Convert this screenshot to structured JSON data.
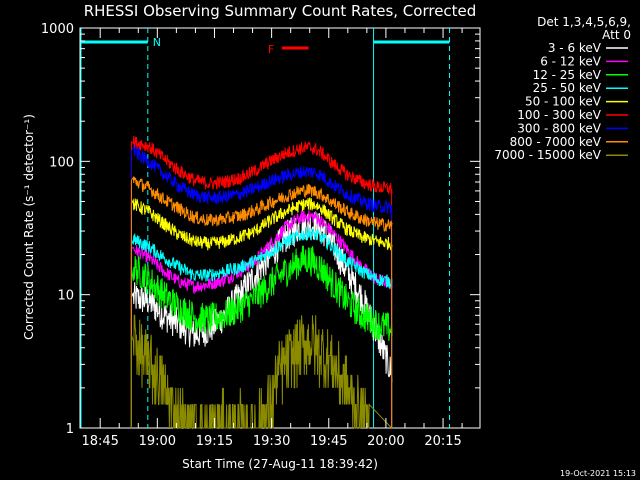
{
  "chart_data": {
    "type": "line",
    "title": "RHESSI Observing Summary Count Rates, Corrected",
    "xlabel": "Start Time (27-Aug-11 18:39:42)",
    "ylabel": "Corrected Count Rate (s⁻¹ detector⁻¹)",
    "yscale": "log",
    "ylim": [
      1,
      1000
    ],
    "y_ticks": [
      "1",
      "10",
      "100",
      "1000"
    ],
    "x_ticks": [
      "18:45",
      "19:00",
      "19:15",
      "19:30",
      "19:45",
      "20:00",
      "20:15"
    ],
    "x_tick_minutes": [
      5.3,
      20.3,
      35.3,
      50.3,
      65.3,
      80.3,
      95.3
    ],
    "xlim_minutes": [
      0,
      105
    ],
    "detector_info": [
      "Det 1,3,4,5,6,9,",
      "Att 0"
    ],
    "timestamp": "19-Oct-2021 15:13",
    "annotations": {
      "night_label": "N",
      "flare_label": "F",
      "night_periods": [
        [
          0,
          17.8
        ],
        [
          76.8,
          97
        ]
      ],
      "flare_period": [
        53,
        60
      ],
      "data_gaps": [
        [
          13.5,
          17.8
        ],
        [
          76.8,
          81.8
        ]
      ]
    },
    "series": [
      {
        "name": "3 - 6 keV",
        "color": "#ffffff",
        "x": [
          14,
          18,
          22,
          26,
          30,
          34,
          38,
          42,
          46,
          50,
          54,
          58,
          60,
          62,
          64,
          66,
          70,
          74,
          78,
          82
        ],
        "values": [
          9.5,
          9,
          7,
          6,
          5,
          5.5,
          7,
          10,
          14,
          20,
          27,
          33,
          34,
          33,
          30,
          25,
          15,
          9.5,
          5,
          2.5
        ]
      },
      {
        "name": "6 - 12 keV",
        "color": "#ff00ff",
        "x": [
          14,
          18,
          22,
          26,
          30,
          34,
          38,
          42,
          46,
          50,
          54,
          58,
          60,
          62,
          64,
          66,
          70,
          74,
          78,
          82
        ],
        "values": [
          22,
          19,
          15,
          12.5,
          11.5,
          12,
          13,
          15,
          18,
          24,
          32,
          38,
          39,
          38,
          34,
          30,
          22,
          16,
          13,
          12
        ]
      },
      {
        "name": "12 - 25 keV",
        "color": "#00ff00",
        "x": [
          14,
          18,
          22,
          26,
          30,
          34,
          38,
          42,
          46,
          50,
          54,
          58,
          60,
          62,
          64,
          66,
          70,
          74,
          78,
          82
        ],
        "values": [
          16,
          13,
          10,
          8,
          6.8,
          6.5,
          7,
          8,
          9.5,
          12,
          15,
          18,
          18.5,
          17,
          15,
          12.5,
          9,
          7,
          6,
          5.5
        ]
      },
      {
        "name": "25 - 50 keV",
        "color": "#00ffff",
        "x": [
          14,
          18,
          22,
          26,
          30,
          34,
          38,
          42,
          46,
          50,
          54,
          58,
          60,
          62,
          64,
          66,
          70,
          74,
          78,
          82
        ],
        "values": [
          26,
          23,
          19,
          16,
          14,
          14,
          15,
          16,
          18,
          21,
          25,
          28,
          29,
          28,
          26,
          23,
          18,
          15,
          13,
          12.5
        ]
      },
      {
        "name": "50 - 100 keV",
        "color": "#ffff00",
        "x": [
          14,
          18,
          22,
          26,
          30,
          34,
          38,
          42,
          46,
          50,
          54,
          58,
          60,
          62,
          64,
          66,
          70,
          74,
          78,
          82
        ],
        "values": [
          48,
          42,
          34,
          28,
          25,
          24,
          25,
          27,
          30,
          36,
          42,
          47,
          48,
          47,
          43,
          38,
          31,
          27,
          25,
          24
        ]
      },
      {
        "name": "100 - 300 keV",
        "color": "#ff0000",
        "x": [
          14,
          18,
          22,
          26,
          30,
          34,
          38,
          42,
          46,
          50,
          54,
          58,
          60,
          62,
          64,
          66,
          70,
          74,
          78,
          82
        ],
        "values": [
          140,
          130,
          105,
          85,
          72,
          68,
          70,
          75,
          85,
          100,
          115,
          125,
          127,
          123,
          112,
          98,
          80,
          70,
          64,
          62
        ]
      },
      {
        "name": "300 - 800 keV",
        "color": "#0000ff",
        "x": [
          14,
          18,
          22,
          26,
          30,
          34,
          38,
          42,
          46,
          50,
          54,
          58,
          60,
          62,
          64,
          66,
          70,
          74,
          78,
          82
        ],
        "values": [
          120,
          100,
          80,
          65,
          56,
          53,
          54,
          57,
          63,
          71,
          78,
          83,
          84,
          82,
          76,
          68,
          57,
          50,
          46,
          45
        ]
      },
      {
        "name": "800 - 7000 keV",
        "color": "#ff8c00",
        "x": [
          14,
          18,
          22,
          26,
          30,
          34,
          38,
          42,
          46,
          50,
          54,
          58,
          60,
          62,
          64,
          66,
          70,
          74,
          78,
          82
        ],
        "values": [
          72,
          63,
          52,
          44,
          38,
          36,
          37,
          39,
          43,
          49,
          55,
          60,
          61,
          59,
          55,
          50,
          42,
          37,
          34,
          33
        ]
      },
      {
        "name": "7000 - 15000 keV",
        "color": "#8b8b00",
        "x": [
          14,
          16,
          18,
          20,
          22,
          24,
          26,
          28,
          30,
          34,
          38,
          42,
          46,
          50,
          52,
          54,
          56,
          58,
          60,
          62,
          64,
          66,
          68,
          70,
          72,
          74,
          76
        ],
        "values": [
          5,
          3.5,
          3,
          2.5,
          2,
          1.5,
          1.2,
          1,
          1,
          1,
          1,
          1,
          1,
          1.5,
          2.5,
          3,
          3.5,
          4,
          4.5,
          4,
          3.5,
          3,
          2.5,
          2,
          1.5,
          1.2,
          1
        ]
      }
    ]
  }
}
